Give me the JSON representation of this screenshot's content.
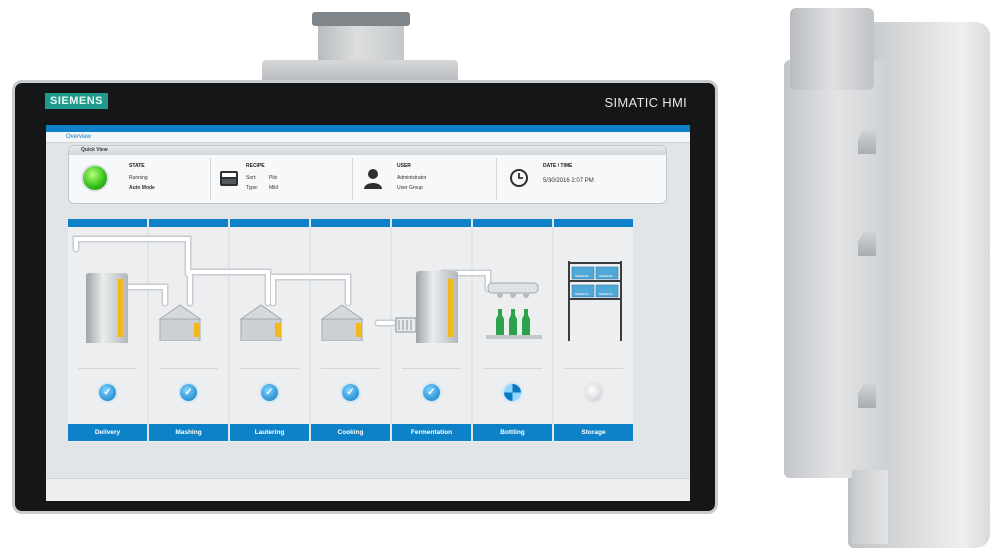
{
  "device": {
    "brand": "SIEMENS",
    "model": "SIMATIC HMI"
  },
  "screen": {
    "title": "Overview",
    "quick_view": {
      "title": "Quick View",
      "state": {
        "heading": "STATE",
        "line1": "Running",
        "line2": "Auto Mode",
        "lamp_color": "#38c21d"
      },
      "recipe": {
        "heading": "RECIPE",
        "sort_label": "Sort:",
        "sort_value": "Pils",
        "type_label": "Type:",
        "type_value": "Mild"
      },
      "user": {
        "heading": "USER",
        "name": "Administrator",
        "group": "User Group"
      },
      "datetime": {
        "heading": "DATE / TIME",
        "value": "5/30/2016 2:07 PM"
      }
    },
    "stages": [
      {
        "label": "Delivery",
        "status": "done"
      },
      {
        "label": "Mashing",
        "status": "done"
      },
      {
        "label": "Lautering",
        "status": "done"
      },
      {
        "label": "Cooking",
        "status": "done"
      },
      {
        "label": "Fermentation",
        "status": "done"
      },
      {
        "label": "Bottling",
        "status": "busy"
      },
      {
        "label": "Storage",
        "status": "idle"
      }
    ],
    "crate_brand": "SIEMENS",
    "accent_color": "#0d82c8",
    "level_color": "#f2b81c"
  }
}
